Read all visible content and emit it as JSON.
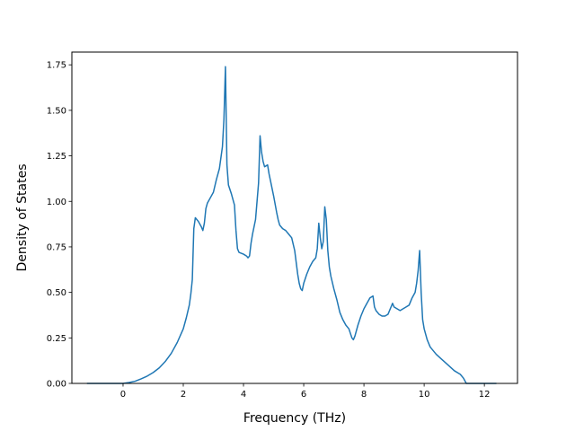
{
  "chart_data": {
    "type": "line",
    "title": "",
    "xlabel": "Frequency (THz)",
    "ylabel": "Density of States",
    "xlim": [
      -1.7,
      13.1
    ],
    "ylim": [
      0.0,
      1.82
    ],
    "xticks": [
      0,
      2,
      4,
      6,
      8,
      10,
      12
    ],
    "xtick_labels": [
      "0",
      "2",
      "4",
      "6",
      "8",
      "10",
      "12"
    ],
    "yticks": [
      0.0,
      0.25,
      0.5,
      0.75,
      1.0,
      1.25,
      1.5,
      1.75
    ],
    "ytick_labels": [
      "0.00",
      "0.25",
      "0.50",
      "0.75",
      "1.00",
      "1.25",
      "1.50",
      "1.75"
    ],
    "grid": false,
    "line_color": "#1f77b4",
    "series": [
      {
        "x": [
          -1.2,
          -0.8,
          -0.4,
          0.0,
          0.2,
          0.4,
          0.6,
          0.8,
          1.0,
          1.2,
          1.4,
          1.6,
          1.8,
          2.0,
          2.1,
          2.2,
          2.25,
          2.3,
          2.35,
          2.4,
          2.5,
          2.6,
          2.65,
          2.7,
          2.75,
          2.8,
          2.9,
          3.0,
          3.1,
          3.2,
          3.3,
          3.35,
          3.4,
          3.45,
          3.5,
          3.6,
          3.7,
          3.75,
          3.8,
          3.85,
          4.0,
          4.1,
          4.15,
          4.2,
          4.25,
          4.3,
          4.4,
          4.5,
          4.55,
          4.6,
          4.65,
          4.7,
          4.8,
          4.85,
          4.9,
          5.0,
          5.1,
          5.15,
          5.2,
          5.3,
          5.4,
          5.5,
          5.6,
          5.7,
          5.8,
          5.85,
          5.9,
          5.95,
          6.0,
          6.1,
          6.2,
          6.3,
          6.4,
          6.45,
          6.5,
          6.55,
          6.6,
          6.65,
          6.7,
          6.75,
          6.8,
          6.85,
          6.9,
          7.0,
          7.1,
          7.2,
          7.3,
          7.4,
          7.5,
          7.6,
          7.65,
          7.7,
          7.8,
          7.9,
          8.0,
          8.1,
          8.2,
          8.3,
          8.35,
          8.4,
          8.5,
          8.6,
          8.7,
          8.8,
          8.9,
          8.95,
          9.0,
          9.1,
          9.2,
          9.3,
          9.4,
          9.5,
          9.6,
          9.7,
          9.75,
          9.8,
          9.85,
          9.9,
          9.95,
          10.0,
          10.1,
          10.2,
          10.4,
          10.6,
          10.8,
          11.0,
          11.2,
          11.3,
          11.4,
          11.6,
          12.0,
          12.4
        ],
        "y": [
          0.0,
          0.0,
          0.0,
          0.0,
          0.005,
          0.012,
          0.025,
          0.04,
          0.06,
          0.085,
          0.12,
          0.165,
          0.225,
          0.3,
          0.36,
          0.43,
          0.49,
          0.57,
          0.85,
          0.91,
          0.89,
          0.86,
          0.84,
          0.88,
          0.96,
          0.99,
          1.02,
          1.05,
          1.12,
          1.18,
          1.3,
          1.45,
          1.74,
          1.2,
          1.09,
          1.04,
          0.98,
          0.84,
          0.74,
          0.72,
          0.71,
          0.7,
          0.69,
          0.7,
          0.77,
          0.82,
          0.9,
          1.1,
          1.36,
          1.27,
          1.22,
          1.19,
          1.2,
          1.15,
          1.11,
          1.03,
          0.94,
          0.9,
          0.87,
          0.85,
          0.84,
          0.82,
          0.8,
          0.73,
          0.6,
          0.55,
          0.52,
          0.51,
          0.55,
          0.6,
          0.64,
          0.67,
          0.69,
          0.74,
          0.88,
          0.8,
          0.74,
          0.78,
          0.97,
          0.9,
          0.73,
          0.64,
          0.59,
          0.52,
          0.46,
          0.39,
          0.35,
          0.32,
          0.3,
          0.25,
          0.24,
          0.26,
          0.32,
          0.37,
          0.41,
          0.44,
          0.47,
          0.48,
          0.42,
          0.4,
          0.38,
          0.37,
          0.37,
          0.38,
          0.42,
          0.44,
          0.42,
          0.41,
          0.4,
          0.41,
          0.42,
          0.43,
          0.47,
          0.5,
          0.55,
          0.62,
          0.73,
          0.5,
          0.35,
          0.3,
          0.24,
          0.2,
          0.16,
          0.13,
          0.1,
          0.07,
          0.05,
          0.03,
          0.0,
          0.0,
          0.0,
          0.0
        ]
      }
    ]
  }
}
